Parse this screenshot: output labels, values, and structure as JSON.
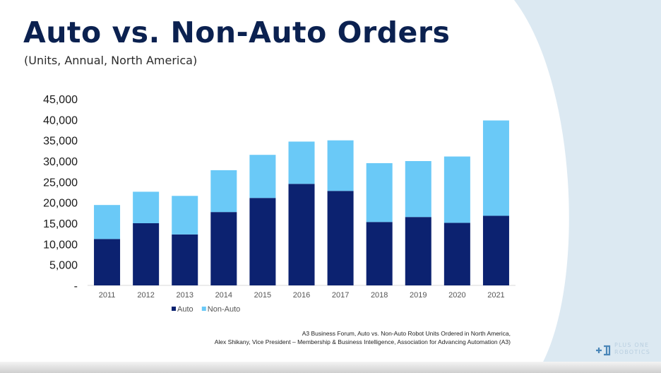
{
  "header": {
    "title": "Auto vs. Non-Auto Orders",
    "subtitle": "(Units, Annual, North America)"
  },
  "source": {
    "line1": "A3 Business Forum, Auto vs. Non-Auto Robot Units Ordered in North America,",
    "line2": "Alex Shikany, Vice President – Membership & Business Intelligence, Association for Advancing Automation (A3)"
  },
  "logo": {
    "line1": "PLUS ONE",
    "line2": "ROBOTICS",
    "icon": "plus-one-robotics-logo-icon"
  },
  "colors": {
    "auto": "#0c2270",
    "non_auto": "#6ac9f7",
    "title": "#0b2150",
    "accent_bg": "#dce9f2"
  },
  "chart_data": {
    "type": "bar",
    "stacked": true,
    "categories": [
      "2011",
      "2012",
      "2013",
      "2014",
      "2015",
      "2016",
      "2017",
      "2018",
      "2019",
      "2020",
      "2021"
    ],
    "series": [
      {
        "name": "Auto",
        "values": [
          11200,
          15000,
          12300,
          17700,
          21100,
          24500,
          22800,
          15300,
          16500,
          15100,
          16800
        ]
      },
      {
        "name": "Non-Auto",
        "values": [
          8200,
          7600,
          9300,
          10100,
          10400,
          10200,
          12200,
          14200,
          13500,
          16000,
          23000
        ]
      }
    ],
    "yticks": [
      "-",
      "5,000",
      "10,000",
      "15,000",
      "20,000",
      "25,000",
      "30,000",
      "35,000",
      "40,000",
      "45,000"
    ],
    "ylim": [
      0,
      45000
    ],
    "legend": "bottom",
    "grid": false
  }
}
